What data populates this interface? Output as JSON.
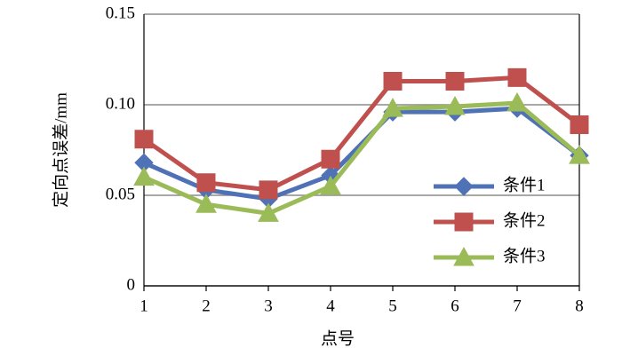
{
  "chart_data": {
    "type": "line",
    "x_label": "点号",
    "y_label": "定向点误差/mm",
    "x": [
      1,
      2,
      3,
      4,
      5,
      6,
      7,
      8
    ],
    "xlim": [
      1,
      8
    ],
    "xticks": [
      1,
      2,
      3,
      4,
      5,
      6,
      7,
      8
    ],
    "ylim": [
      0,
      0.15
    ],
    "yticks": [
      0,
      0.05,
      {
        "value": 0.1,
        "label": "0.10"
      },
      0.15
    ],
    "grid": true,
    "legend": "lower right",
    "series": [
      {
        "name": "条件1",
        "color": "#4f71b5",
        "marker": "diamond",
        "values": [
          0.068,
          0.053,
          0.048,
          0.061,
          0.096,
          0.096,
          0.098,
          0.072
        ]
      },
      {
        "name": "条件2",
        "color": "#c0504d",
        "marker": "square",
        "values": [
          0.081,
          0.057,
          0.053,
          0.07,
          0.113,
          0.113,
          0.115,
          0.089
        ]
      },
      {
        "name": "条件3",
        "color": "#9bbb59",
        "marker": "triangle",
        "values": [
          0.06,
          0.045,
          0.04,
          0.055,
          0.098,
          0.099,
          0.101,
          0.072
        ]
      }
    ]
  }
}
